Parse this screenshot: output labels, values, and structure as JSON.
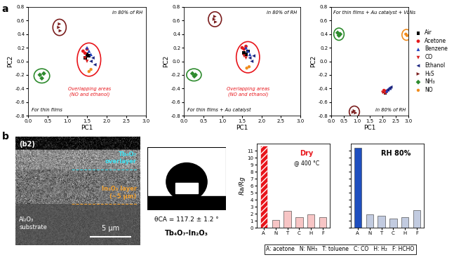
{
  "panel_labels": [
    "a",
    "b"
  ],
  "chart_data": [
    {
      "type": "scatter",
      "x_label": "PC1",
      "y_label": "PC2",
      "xlim": [
        0,
        3
      ],
      "xticks": [
        {
          "value": 0,
          "label": "0.0"
        },
        {
          "value": 0.5,
          "label": "0.5"
        },
        {
          "value": 1,
          "label": "1.0"
        },
        {
          "value": 1.5,
          "label": "1.5"
        },
        {
          "value": 2,
          "label": "2.0"
        },
        {
          "value": 2.5,
          "label": "2.5"
        },
        {
          "value": 3,
          "label": "3.0"
        }
      ],
      "ylim": [
        -0.8,
        0.8
      ],
      "yticks": [
        {
          "value": -0.8,
          "label": "-0.8"
        },
        {
          "value": -0.6,
          "label": "-0.6"
        },
        {
          "value": -0.4,
          "label": "-0.4"
        },
        {
          "value": -0.2,
          "label": "-0.2"
        },
        {
          "value": 0,
          "label": "0.0"
        },
        {
          "value": 0.2,
          "label": "0.2"
        },
        {
          "value": 0.4,
          "label": "0.4"
        },
        {
          "value": 0.6,
          "label": "0.6"
        },
        {
          "value": 0.8,
          "label": "0.8"
        }
      ],
      "annotations": [
        {
          "text": "in 80% of RH"
        },
        {
          "text": "For thin films"
        },
        {
          "text": "Overlapping areas\n(NO and ethanol)",
          "color": "#e8151b"
        }
      ],
      "series": [
        {
          "color": "#000000",
          "marker": "square",
          "x": [
            1.45,
            1.5,
            1.55
          ],
          "y": [
            0.05,
            0.1,
            0.08
          ]
        },
        {
          "color": "#e41a1c",
          "marker": "circle",
          "x": [
            1.4,
            1.45,
            1.5
          ],
          "y": [
            0.15,
            0.12,
            0.18
          ]
        },
        {
          "color": "#1f3fbf",
          "marker": "triangle_up",
          "x": [
            1.5,
            1.55,
            1.6
          ],
          "y": [
            0.2,
            0.15,
            0.1
          ]
        },
        {
          "color": "#d62020",
          "marker": "triangle_down",
          "x": [
            1.45,
            1.5
          ],
          "y": [
            0.05,
            0.0
          ]
        },
        {
          "color": "#1a237e",
          "marker": "triangle_left",
          "x": [
            1.6,
            1.7,
            1.65
          ],
          "y": [
            0.0,
            -0.05,
            0.05
          ]
        },
        {
          "color": "#7b1e1e",
          "marker": "triangle_right",
          "x": [
            0.78,
            0.82,
            0.8
          ],
          "y": [
            0.5,
            0.45,
            0.55
          ]
        },
        {
          "color": "#2e8b2e",
          "marker": "diamond",
          "x": [
            0.3,
            0.35,
            0.4
          ],
          "y": [
            -0.2,
            -0.25,
            -0.18
          ]
        },
        {
          "color": "#f08c1e",
          "marker": "hexagon",
          "x": [
            1.55,
            1.6
          ],
          "y": [
            -0.15,
            -0.12
          ]
        }
      ]
    },
    {
      "type": "scatter",
      "x_label": "PC1",
      "y_label": "PC2",
      "xlim": [
        0,
        3
      ],
      "xticks": [
        {
          "value": 0,
          "label": "0.0"
        },
        {
          "value": 0.5,
          "label": "0.5"
        },
        {
          "value": 1,
          "label": "1.0"
        },
        {
          "value": 1.5,
          "label": "1.5"
        },
        {
          "value": 2,
          "label": "2.0"
        },
        {
          "value": 2.5,
          "label": "2.5"
        },
        {
          "value": 3,
          "label": "3.0"
        }
      ],
      "ylim": [
        -0.8,
        0.8
      ],
      "yticks": [
        {
          "value": -0.8,
          "label": "-0.8"
        },
        {
          "value": -0.6,
          "label": "-0.6"
        },
        {
          "value": -0.4,
          "label": "-0.4"
        },
        {
          "value": -0.2,
          "label": "-0.2"
        },
        {
          "value": 0,
          "label": "0.0"
        },
        {
          "value": 0.2,
          "label": "0.2"
        },
        {
          "value": 0.4,
          "label": "0.4"
        },
        {
          "value": 0.6,
          "label": "0.6"
        },
        {
          "value": 0.8,
          "label": "0.8"
        }
      ],
      "annotations": [
        {
          "text": "in 80% of RH"
        },
        {
          "text": "For thin films + Au catalyst"
        },
        {
          "text": "Overlapping areas\n(NO and ethanol)",
          "color": "#e8151b"
        }
      ],
      "series": [
        {
          "color": "#000000",
          "marker": "square",
          "x": [
            1.55,
            1.6,
            1.65
          ],
          "y": [
            0.12,
            0.1,
            0.15
          ]
        },
        {
          "color": "#e41a1c",
          "marker": "circle",
          "x": [
            1.5,
            1.55,
            1.6
          ],
          "y": [
            0.2,
            0.18,
            0.22
          ]
        },
        {
          "color": "#1f3fbf",
          "marker": "triangle_up",
          "x": [
            1.6,
            1.65,
            1.7
          ],
          "y": [
            0.2,
            0.15,
            0.1
          ]
        },
        {
          "color": "#d62020",
          "marker": "triangle_down",
          "x": [
            1.55,
            1.6
          ],
          "y": [
            0.08,
            0.05
          ]
        },
        {
          "color": "#1a237e",
          "marker": "triangle_left",
          "x": [
            1.7,
            1.75,
            1.8
          ],
          "y": [
            0.05,
            0.0,
            0.08
          ]
        },
        {
          "color": "#7b1e1e",
          "marker": "triangle_right",
          "x": [
            0.78,
            0.82,
            0.8
          ],
          "y": [
            0.62,
            0.58,
            0.66
          ]
        },
        {
          "color": "#2e8b2e",
          "marker": "diamond",
          "x": [
            0.22,
            0.27,
            0.3
          ],
          "y": [
            -0.18,
            -0.22,
            -0.2
          ]
        },
        {
          "color": "#f08c1e",
          "marker": "hexagon",
          "x": [
            1.62,
            1.68
          ],
          "y": [
            -0.1,
            -0.08
          ]
        }
      ]
    },
    {
      "type": "scatter",
      "x_label": "PC1",
      "y_label": "PC2",
      "legend": "center left",
      "xlim": [
        0,
        3
      ],
      "xticks": [
        {
          "value": 0,
          "label": "0.0"
        },
        {
          "value": 0.5,
          "label": "0.5"
        },
        {
          "value": 1,
          "label": "1.0"
        },
        {
          "value": 1.5,
          "label": "1.5"
        },
        {
          "value": 2,
          "label": "2.0"
        },
        {
          "value": 2.5,
          "label": "2.5"
        },
        {
          "value": 3,
          "label": "3.0"
        }
      ],
      "ylim": [
        -0.8,
        0.8
      ],
      "yticks": [
        {
          "value": -0.8,
          "label": "-0.8"
        },
        {
          "value": -0.6,
          "label": "-0.6"
        },
        {
          "value": -0.4,
          "label": "-0.4"
        },
        {
          "value": -0.2,
          "label": "-0.2"
        },
        {
          "value": 0,
          "label": "0.0"
        },
        {
          "value": 0.2,
          "label": "0.2"
        },
        {
          "value": 0.4,
          "label": "0.4"
        },
        {
          "value": 0.6,
          "label": "0.6"
        },
        {
          "value": 0.8,
          "label": "0.8"
        }
      ],
      "annotations": [
        {
          "text": "For thin films + Au catalyst + VLNs"
        },
        {
          "text": "in 80% of RH"
        }
      ],
      "series": [
        {
          "name": "Air",
          "color": "#000000",
          "marker": "square",
          "x": [
            2.05,
            2.1,
            2.12
          ],
          "y": [
            -0.45,
            -0.47,
            -0.44
          ]
        },
        {
          "name": "Acetone",
          "color": "#e41a1c",
          "marker": "circle",
          "x": [
            2.05,
            2.1,
            2.15
          ],
          "y": [
            -0.43,
            -0.46,
            -0.44
          ]
        },
        {
          "name": "Benzene",
          "color": "#1f3fbf",
          "marker": "triangle_up",
          "x": [
            2.15,
            2.2,
            2.25
          ],
          "y": [
            -0.44,
            -0.42,
            -0.4
          ]
        },
        {
          "name": "CO",
          "color": "#d62020",
          "marker": "triangle_down",
          "x": [
            2.0,
            2.08
          ],
          "y": [
            -0.46,
            -0.45
          ]
        },
        {
          "name": "Ethanol",
          "color": "#1a237e",
          "marker": "triangle_left",
          "x": [
            2.2,
            2.28,
            2.32
          ],
          "y": [
            -0.42,
            -0.4,
            -0.38
          ]
        },
        {
          "name": "H₂S",
          "color": "#7b1e1e",
          "marker": "triangle_right",
          "x": [
            0.85,
            0.9,
            0.95
          ],
          "y": [
            -0.75,
            -0.73,
            -0.76
          ]
        },
        {
          "name": "NH₃",
          "color": "#2e8b2e",
          "marker": "diamond",
          "x": [
            0.25,
            0.3,
            0.35
          ],
          "y": [
            0.42,
            0.38,
            0.4
          ]
        },
        {
          "name": "NO",
          "color": "#f08c1e",
          "marker": "hexagon",
          "x": [
            2.9,
            2.95
          ],
          "y": [
            0.4,
            0.38
          ]
        }
      ]
    },
    {
      "type": "bar",
      "y_label": "Ra/Rg",
      "categories": [
        "A",
        "N",
        "T",
        "C",
        "H",
        "F"
      ],
      "values": [
        11.7,
        1.1,
        2.4,
        1.5,
        1.9,
        1.5
      ],
      "colors": [
        "#e8151b",
        "#f7c5c5",
        "#f7c5c5",
        "#f7c5c5",
        "#f7c5c5",
        "#f7c5c5"
      ],
      "ylim": [
        0,
        12
      ],
      "yticks": [
        0,
        1,
        2,
        3,
        4,
        5,
        6,
        7,
        8,
        9,
        10,
        11
      ],
      "annotations": [
        {
          "text": "Dry",
          "color": "#e8151b"
        },
        {
          "text": "@ 400 °C"
        }
      ]
    },
    {
      "type": "bar",
      "categories": [
        "A",
        "N",
        "T",
        "C",
        "H",
        "F"
      ],
      "tick_labels": "x",
      "values": [
        11.4,
        1.9,
        1.7,
        1.3,
        1.5,
        2.5
      ],
      "colors": [
        "#1f4fbf",
        "#c2cbe0",
        "#c2cbe0",
        "#c2cbe0",
        "#c2cbe0",
        "#c2cbe0"
      ],
      "ylim": [
        0,
        12
      ],
      "yticks": [
        0,
        1,
        2,
        3,
        4,
        5,
        6,
        7,
        8,
        9,
        10,
        11
      ],
      "annotations": [
        {
          "text": "RH 80%"
        }
      ]
    }
  ],
  "sem_image": {
    "label": "(b2)",
    "overlayer": "Tb₄O₇\noverlayer",
    "layer": "In₂O₃ layer\n(~5 μm)",
    "substrate": "Al₂O₃\nsubstrate",
    "scale_bar": "5 μm"
  },
  "contact_angle": {
    "angle": "θCA = 117.2 ± 1.2 °",
    "sample": "Tb₄O₇-In₂O₃"
  },
  "key": [
    "A: acetone",
    "N: NH₃",
    "T: toluene",
    "C: CO",
    "H: H₂",
    "F: HCHO"
  ]
}
